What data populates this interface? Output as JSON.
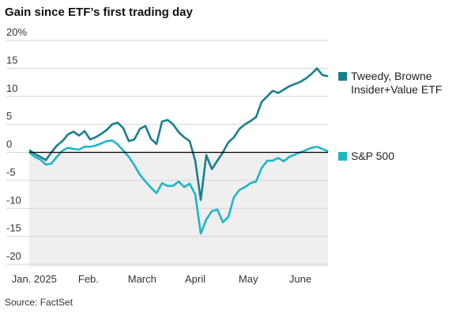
{
  "chart_data": {
    "type": "line",
    "title": "Gain since ETF’s first trading day",
    "source": "Source: FactSet",
    "ylim": [
      -20,
      20
    ],
    "yticks": [
      {
        "value": 20,
        "label": "20%"
      },
      15,
      10,
      5,
      0,
      -5,
      -10,
      -15,
      -20
    ],
    "xlim": [
      0,
      54
    ],
    "xticks": [
      {
        "value": 0.9,
        "label": "Jan. 2025"
      },
      {
        "value": 10.7,
        "label": "Feb."
      },
      {
        "value": 20.4,
        "label": "March"
      },
      {
        "value": 30,
        "label": "April"
      },
      {
        "value": 39.6,
        "label": "May"
      },
      {
        "value": 49,
        "label": "June"
      }
    ],
    "grid": true,
    "series": [
      {
        "name": "Tweedy, Browne Insider+Value ETF",
        "color": "#17808f",
        "values": [
          0.4,
          -0.3,
          -0.8,
          -1.4,
          0,
          1.2,
          2,
          3.2,
          3.7,
          3,
          3.8,
          2.3,
          2.7,
          3.3,
          4,
          5,
          5.3,
          4.3,
          2,
          2.3,
          4.2,
          4.7,
          2.4,
          1.5,
          5.5,
          5.8,
          5,
          3.6,
          2.7,
          2,
          -1.5,
          -8.5,
          -0.5,
          -3,
          -1.5,
          0,
          1.8,
          2.7,
          4.2,
          5,
          5.6,
          6.3,
          9,
          10,
          11,
          10.6,
          11.2,
          11.8,
          12.2,
          12.6,
          13.2,
          14,
          15,
          13.8,
          13.6
        ]
      },
      {
        "name": "S&P 500",
        "color": "#1cb7c7",
        "values": [
          0,
          -0.8,
          -1.3,
          -2.2,
          -2,
          -0.8,
          0.3,
          0.8,
          0.6,
          0.5,
          1,
          1,
          1.2,
          1.6,
          2,
          2.1,
          1.4,
          0.3,
          -0.8,
          -2.3,
          -4,
          -5.2,
          -6.3,
          -7.3,
          -5.5,
          -6,
          -6,
          -5.2,
          -6.2,
          -5.6,
          -7.5,
          -14.5,
          -12,
          -10.5,
          -10.2,
          -12.5,
          -11.5,
          -8,
          -6.7,
          -6.2,
          -5.5,
          -5.2,
          -2.8,
          -1.5,
          -1.5,
          -1,
          -1.6,
          -0.8,
          -0.4,
          0,
          0.4,
          0.8,
          1,
          0.6,
          0.2
        ]
      }
    ]
  }
}
